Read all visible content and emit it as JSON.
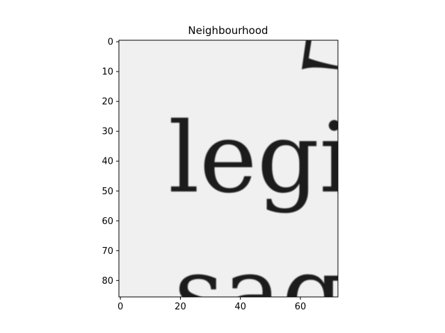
{
  "chart_data": {
    "type": "heatmap",
    "title": "Neighbourhood",
    "xlabel": "",
    "ylabel": "",
    "colormap": "gray",
    "xlim": [
      -0.5,
      72.5
    ],
    "ylim": [
      85.5,
      -0.5
    ],
    "x_ticks": [
      0,
      20,
      40,
      60
    ],
    "y_ticks": [
      0,
      10,
      20,
      30,
      40,
      50,
      60,
      70,
      80
    ],
    "grid": false,
    "image_content": {
      "description_text_lines": [
        "legi",
        "sag"
      ]
    }
  },
  "colors": {
    "background": "#f2f2f2",
    "ink": "#1a1a1a",
    "axis": "#000000"
  }
}
